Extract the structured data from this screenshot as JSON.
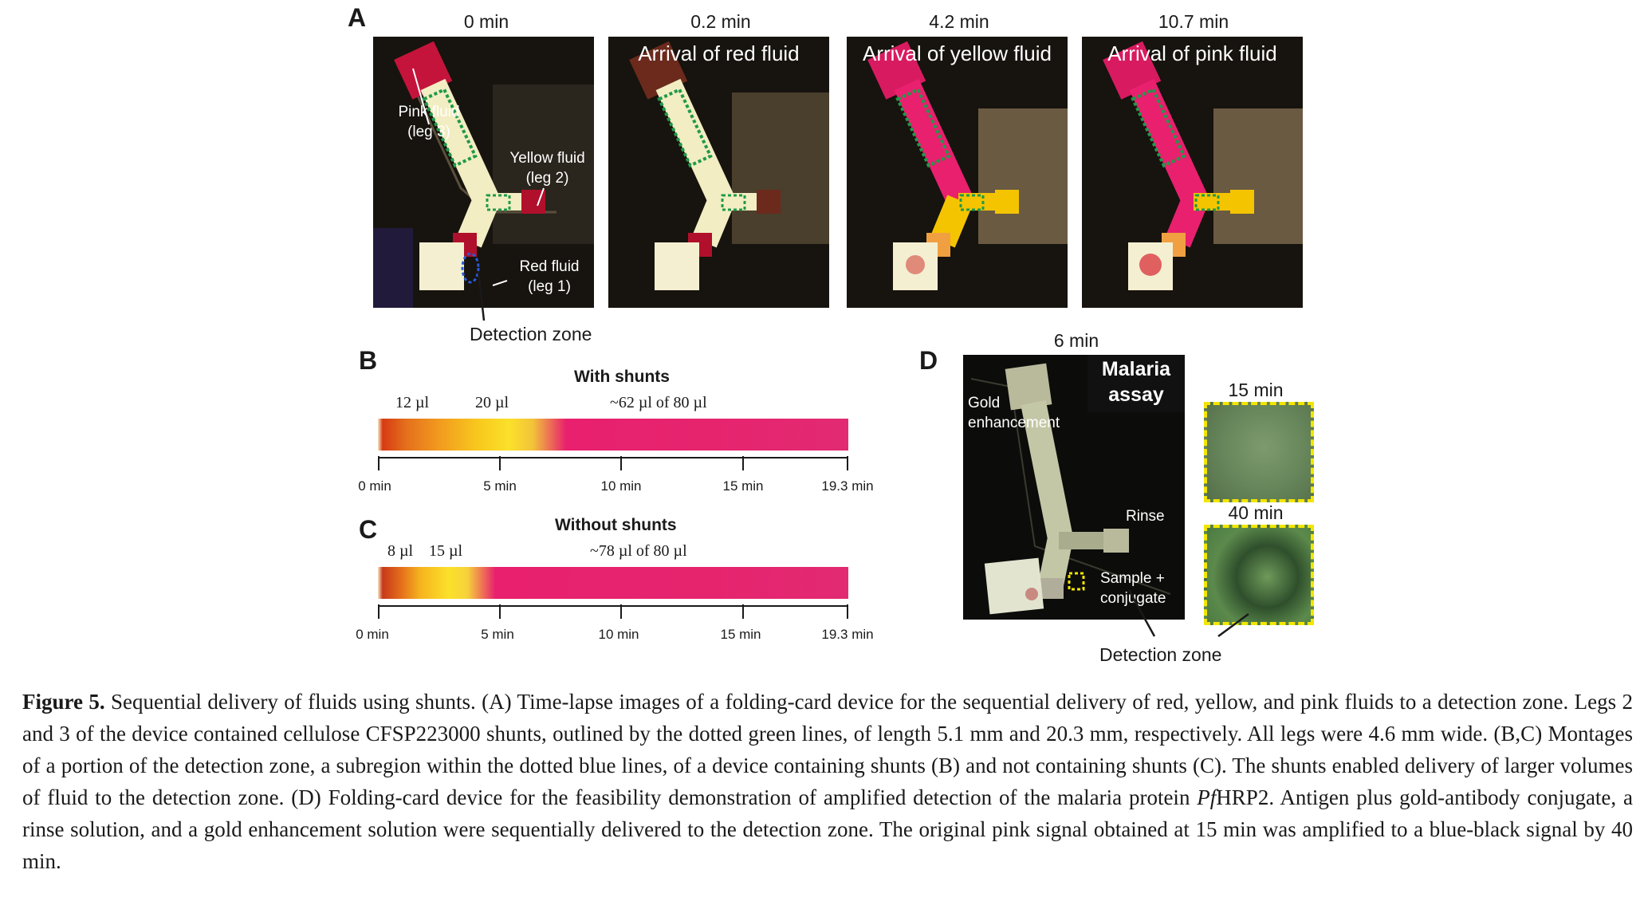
{
  "panel_a": {
    "label": "A",
    "frames": [
      {
        "time": "0 min",
        "title": ""
      },
      {
        "time": "0.2 min",
        "title": "Arrival of red fluid"
      },
      {
        "time": "4.2 min",
        "title": "Arrival of yellow fluid"
      },
      {
        "time": "10.7 min",
        "title": "Arrival of pink fluid"
      }
    ],
    "annotations": {
      "pink": "Pink fluid",
      "pink_leg": "(leg 3)",
      "yellow": "Yellow fluid",
      "yellow_leg": "(leg 2)",
      "red": "Red fluid",
      "red_leg": "(leg 1)"
    },
    "detection_zone": "Detection zone"
  },
  "panel_b": {
    "label": "B",
    "title": "With shunts",
    "volumes": [
      "12 µl",
      "20 µl",
      "~62 µl of 80 µl"
    ],
    "ticks": [
      "0 min",
      "5 min",
      "10 min",
      "15 min",
      "19.3 min"
    ]
  },
  "panel_c": {
    "label": "C",
    "title": "Without shunts",
    "volumes": [
      "8 µl",
      "15 µl",
      "~78 µl of 80 µl"
    ],
    "ticks": [
      "0 min",
      "5 min",
      "10 min",
      "15 min",
      "19.3 min"
    ]
  },
  "panel_d": {
    "label": "D",
    "time_main": "6 min",
    "assay_line1": "Malaria",
    "assay_line2": "assay",
    "gold_line1": "Gold",
    "gold_line2": "enhancement",
    "rinse": "Rinse",
    "sample_line1": "Sample +",
    "sample_line2": "conjugate",
    "time_15": "15 min",
    "time_40": "40 min",
    "detection_zone": "Detection zone"
  },
  "caption": {
    "label": "Figure 5.",
    "text_1": " Sequential delivery of fluids using shunts. (A) Time-lapse images of a folding-card device for the sequential delivery of red, yellow, and pink fluids to a detection zone. Legs 2 and 3 of the device contained cellulose CFSP223000 shunts, outlined by the dotted green lines, of length 5.1 mm and 20.3 mm, respectively. All legs were 4.6 mm wide. (B,C) Montages of a portion of the detection zone, a subregion within the dotted blue lines, of a device containing shunts (B) and not containing shunts (C). The shunts enabled delivery of larger volumes of fluid to the detection zone. (D) Folding-card device for the feasibility demonstration of amplified detection of the malaria protein ",
    "pf": "Pf",
    "text_2": "HRP2. Antigen plus gold-antibody conjugate, a rinse solution, and a gold enhancement solution were sequentially delivered to the detection zone. The original pink signal obtained at 15 min was amplified to a blue-black signal by 40 min."
  },
  "colors": {
    "red_fluid": "#c8102e",
    "yellow_fluid": "#f5c400",
    "pink_fluid": "#e8206e",
    "shunt_outline": "#1f9a4a",
    "detection_outline": "#2a5bd7",
    "crop_outline": "#f2e600"
  }
}
